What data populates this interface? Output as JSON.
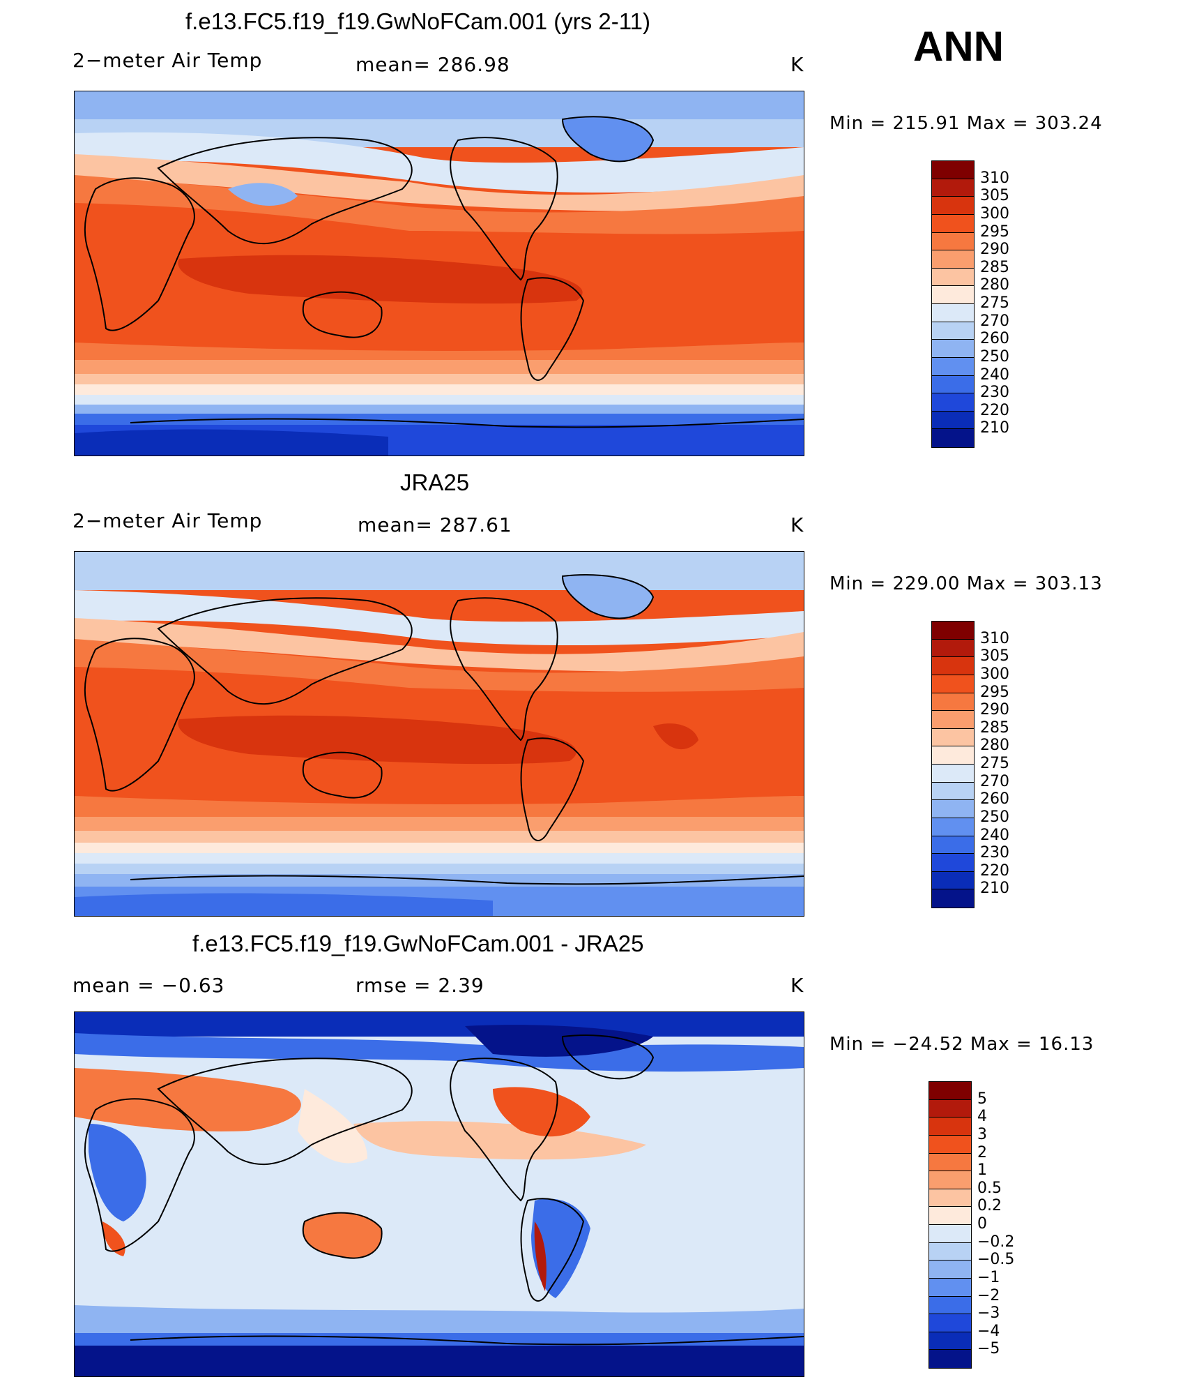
{
  "panels": [
    {
      "title": "f.e13.FC5.f19_f19.GwNoFCam.001 (yrs 2-11)",
      "left_label": "2−meter Air Temp",
      "center_label": "mean=  286.98",
      "unit": "K",
      "minmax": "Min  =  215.91  Max  =  303.24",
      "kind": "abs"
    },
    {
      "title": "JRA25",
      "left_label": "2−meter Air Temp",
      "center_label": "mean=  287.61",
      "unit": "K",
      "minmax": "Min  =  229.00  Max  =  303.13",
      "kind": "abs"
    },
    {
      "title": "f.e13.FC5.f19_f19.GwNoFCam.001 - JRA25",
      "left_label": "mean  =    −0.63",
      "center_label": "rmse  =     2.39",
      "unit": "K",
      "minmax": "Min  =  −24.52  Max  =    16.13",
      "kind": "diff"
    }
  ],
  "season": "ANN",
  "colorbars": {
    "abs": {
      "labels": [
        "310",
        "305",
        "300",
        "295",
        "290",
        "285",
        "280",
        "275",
        "270",
        "260",
        "250",
        "240",
        "230",
        "220",
        "210"
      ],
      "colors": [
        "#7f0000",
        "#b21a0c",
        "#d8340e",
        "#f0521d",
        "#f67840",
        "#fa9e6e",
        "#fcc4a2",
        "#feeadc",
        "#dce9f8",
        "#b8d2f4",
        "#8fb4f2",
        "#6190f0",
        "#3b6de8",
        "#1f48da",
        "#0a2db8",
        "#04138a"
      ]
    },
    "diff": {
      "labels": [
        "5",
        "4",
        "3",
        "2",
        "1",
        "0.5",
        "0.2",
        "0",
        "−0.2",
        "−0.5",
        "−1",
        "−2",
        "−3",
        "−4",
        "−5"
      ],
      "colors": [
        "#7f0000",
        "#b21a0c",
        "#d8340e",
        "#f0521d",
        "#f67840",
        "#fa9e6e",
        "#fcc4a2",
        "#feeadc",
        "#dce9f8",
        "#b8d2f4",
        "#8fb4f2",
        "#6190f0",
        "#3b6de8",
        "#1f48da",
        "#0a2db8",
        "#04138a"
      ]
    }
  }
}
